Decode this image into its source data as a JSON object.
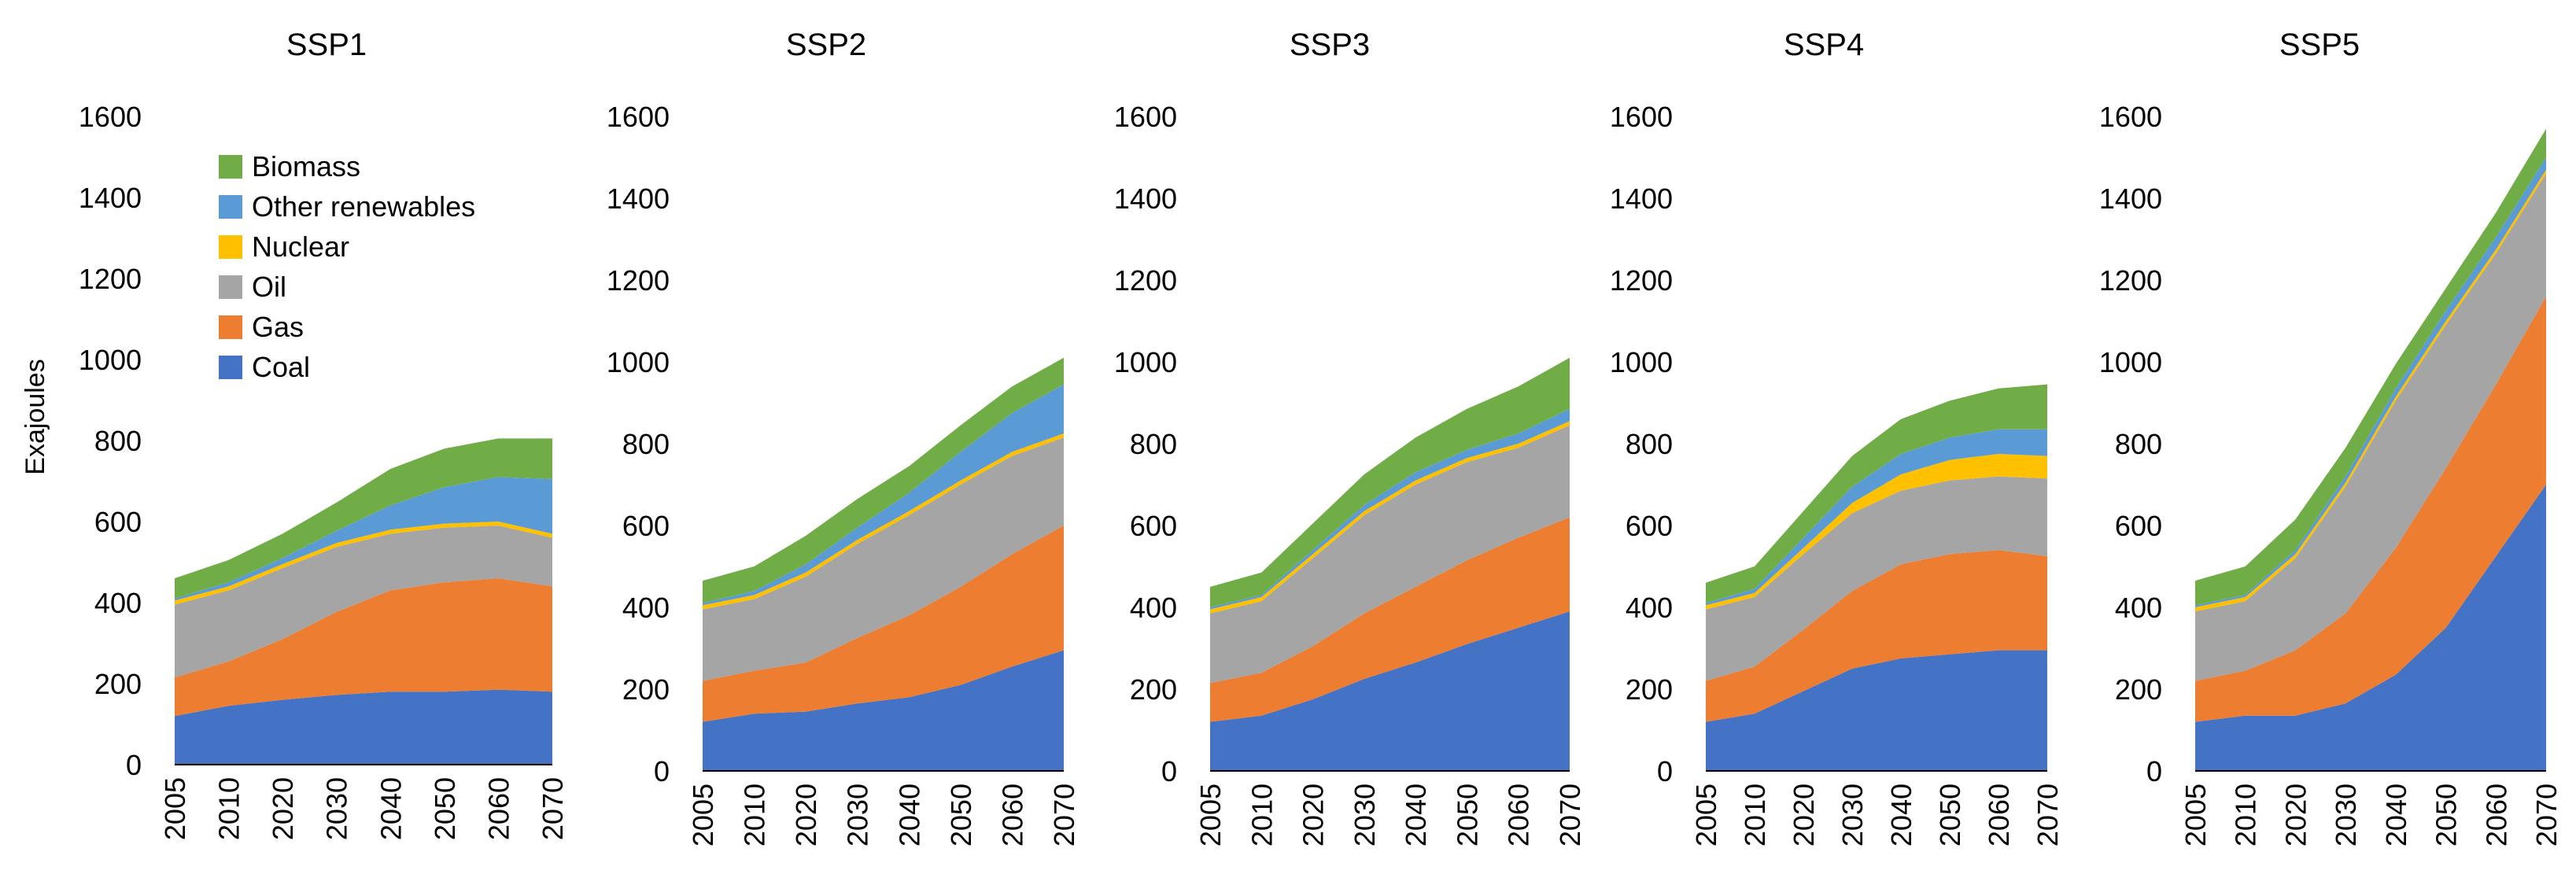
{
  "figure": {
    "ylabel": "Exajoules"
  },
  "legend": {
    "placement": "top-left of first panel",
    "items": [
      {
        "key": "biomass",
        "label": "Biomass"
      },
      {
        "key": "other_renewables",
        "label": "Other renewables"
      },
      {
        "key": "nuclear",
        "label": "Nuclear"
      },
      {
        "key": "oil",
        "label": "Oil"
      },
      {
        "key": "gas",
        "label": "Gas"
      },
      {
        "key": "coal",
        "label": "Coal"
      }
    ]
  },
  "colors": {
    "coal": "#4472C4",
    "gas": "#ED7D31",
    "oil": "#A5A5A5",
    "nuclear": "#FFC000",
    "other_renewables": "#5B9BD5",
    "biomass": "#70AD47"
  },
  "chart_data": [
    {
      "type": "area",
      "stacked": true,
      "title": "SSP1",
      "xlabel": "",
      "ylabel": "Exajoules",
      "categories": [
        "2005",
        "2010",
        "2020",
        "2030",
        "2040",
        "2050",
        "2060",
        "2070"
      ],
      "yticks": [
        0,
        200,
        400,
        600,
        800,
        1000,
        1200,
        1400,
        1600
      ],
      "ylim": [
        0,
        1600
      ],
      "grid": false,
      "series": [
        {
          "name": "Coal",
          "key": "coal",
          "values": [
            120,
            145,
            160,
            172,
            180,
            180,
            185,
            180
          ]
        },
        {
          "name": "Gas",
          "key": "gas",
          "values": [
            95,
            110,
            150,
            205,
            250,
            270,
            275,
            260
          ]
        },
        {
          "name": "Oil",
          "key": "oil",
          "values": [
            180,
            175,
            175,
            160,
            140,
            135,
            130,
            120
          ]
        },
        {
          "name": "Nuclear",
          "key": "nuclear",
          "values": [
            10,
            10,
            10,
            10,
            10,
            10,
            10,
            10
          ]
        },
        {
          "name": "Other renewables",
          "key": "other_renewables",
          "values": [
            5,
            10,
            15,
            30,
            60,
            90,
            110,
            135
          ]
        },
        {
          "name": "Biomass",
          "key": "biomass",
          "values": [
            50,
            55,
            60,
            70,
            90,
            95,
            95,
            100
          ]
        }
      ]
    },
    {
      "type": "area",
      "stacked": true,
      "title": "SSP2",
      "xlabel": "",
      "ylabel": "",
      "categories": [
        "2005",
        "2010",
        "2020",
        "2030",
        "2040",
        "2050",
        "2060",
        "2070"
      ],
      "yticks": [
        0,
        200,
        400,
        600,
        800,
        1000,
        1200,
        1400,
        1600
      ],
      "ylim": [
        0,
        1600
      ],
      "grid": false,
      "series": [
        {
          "name": "Coal",
          "key": "coal",
          "values": [
            120,
            140,
            145,
            165,
            180,
            210,
            255,
            295
          ]
        },
        {
          "name": "Gas",
          "key": "gas",
          "values": [
            100,
            105,
            120,
            160,
            200,
            240,
            275,
            305
          ]
        },
        {
          "name": "Oil",
          "key": "oil",
          "values": [
            175,
            175,
            210,
            230,
            245,
            250,
            240,
            215
          ]
        },
        {
          "name": "Nuclear",
          "key": "nuclear",
          "values": [
            10,
            10,
            10,
            10,
            10,
            10,
            10,
            10
          ]
        },
        {
          "name": "Other renewables",
          "key": "other_renewables",
          "values": [
            5,
            10,
            20,
            30,
            45,
            70,
            95,
            120
          ]
        },
        {
          "name": "Biomass",
          "key": "biomass",
          "values": [
            55,
            60,
            70,
            70,
            65,
            65,
            65,
            65
          ]
        }
      ]
    },
    {
      "type": "area",
      "stacked": true,
      "title": "SSP3",
      "xlabel": "",
      "ylabel": "",
      "categories": [
        "2005",
        "2010",
        "2020",
        "2030",
        "2040",
        "2050",
        "2060",
        "2070"
      ],
      "yticks": [
        0,
        200,
        400,
        600,
        800,
        1000,
        1200,
        1400,
        1600
      ],
      "ylim": [
        0,
        1600
      ],
      "grid": false,
      "series": [
        {
          "name": "Coal",
          "key": "coal",
          "values": [
            120,
            135,
            175,
            225,
            265,
            310,
            350,
            390
          ]
        },
        {
          "name": "Gas",
          "key": "gas",
          "values": [
            95,
            105,
            130,
            160,
            185,
            205,
            220,
            230
          ]
        },
        {
          "name": "Oil",
          "key": "oil",
          "values": [
            170,
            175,
            215,
            240,
            250,
            240,
            220,
            225
          ]
        },
        {
          "name": "Nuclear",
          "key": "nuclear",
          "values": [
            10,
            10,
            10,
            10,
            10,
            10,
            10,
            10
          ]
        },
        {
          "name": "Other renewables",
          "key": "other_renewables",
          "values": [
            5,
            5,
            10,
            15,
            20,
            20,
            25,
            30
          ]
        },
        {
          "name": "Biomass",
          "key": "biomass",
          "values": [
            50,
            55,
            65,
            75,
            85,
            100,
            115,
            125
          ]
        }
      ]
    },
    {
      "type": "area",
      "stacked": true,
      "title": "SSP4",
      "xlabel": "",
      "ylabel": "",
      "categories": [
        "2005",
        "2010",
        "2020",
        "2030",
        "2040",
        "2050",
        "2060",
        "2070"
      ],
      "yticks": [
        0,
        200,
        400,
        600,
        800,
        1000,
        1200,
        1400,
        1600
      ],
      "ylim": [
        0,
        1600
      ],
      "grid": false,
      "series": [
        {
          "name": "Coal",
          "key": "coal",
          "values": [
            120,
            140,
            195,
            250,
            275,
            285,
            295,
            295
          ]
        },
        {
          "name": "Gas",
          "key": "gas",
          "values": [
            100,
            115,
            150,
            190,
            230,
            245,
            245,
            230
          ]
        },
        {
          "name": "Oil",
          "key": "oil",
          "values": [
            175,
            170,
            185,
            190,
            180,
            180,
            180,
            190
          ]
        },
        {
          "name": "Nuclear",
          "key": "nuclear",
          "values": [
            10,
            10,
            15,
            25,
            40,
            50,
            55,
            55
          ]
        },
        {
          "name": "Other renewables",
          "key": "other_renewables",
          "values": [
            5,
            10,
            25,
            40,
            50,
            55,
            60,
            65
          ]
        },
        {
          "name": "Biomass",
          "key": "biomass",
          "values": [
            50,
            55,
            65,
            75,
            85,
            90,
            100,
            110
          ]
        }
      ]
    },
    {
      "type": "area",
      "stacked": true,
      "title": "SSP5",
      "xlabel": "",
      "ylabel": "",
      "categories": [
        "2005",
        "2010",
        "2020",
        "2030",
        "2040",
        "2050",
        "2060",
        "2070"
      ],
      "yticks": [
        0,
        200,
        400,
        600,
        800,
        1000,
        1200,
        1400,
        1600
      ],
      "ylim": [
        0,
        1600
      ],
      "grid": false,
      "series": [
        {
          "name": "Coal",
          "key": "coal",
          "values": [
            120,
            135,
            135,
            165,
            235,
            350,
            525,
            700
          ]
        },
        {
          "name": "Gas",
          "key": "gas",
          "values": [
            100,
            110,
            160,
            220,
            310,
            390,
            420,
            460
          ]
        },
        {
          "name": "Oil",
          "key": "oil",
          "values": [
            170,
            170,
            225,
            310,
            360,
            350,
            320,
            300
          ]
        },
        {
          "name": "Nuclear",
          "key": "nuclear",
          "values": [
            10,
            10,
            10,
            10,
            10,
            10,
            10,
            10
          ]
        },
        {
          "name": "Other renewables",
          "key": "other_renewables",
          "values": [
            5,
            5,
            10,
            15,
            20,
            25,
            30,
            30
          ]
        },
        {
          "name": "Biomass",
          "key": "biomass",
          "values": [
            60,
            70,
            75,
            70,
            60,
            55,
            60,
            70
          ]
        }
      ]
    }
  ]
}
